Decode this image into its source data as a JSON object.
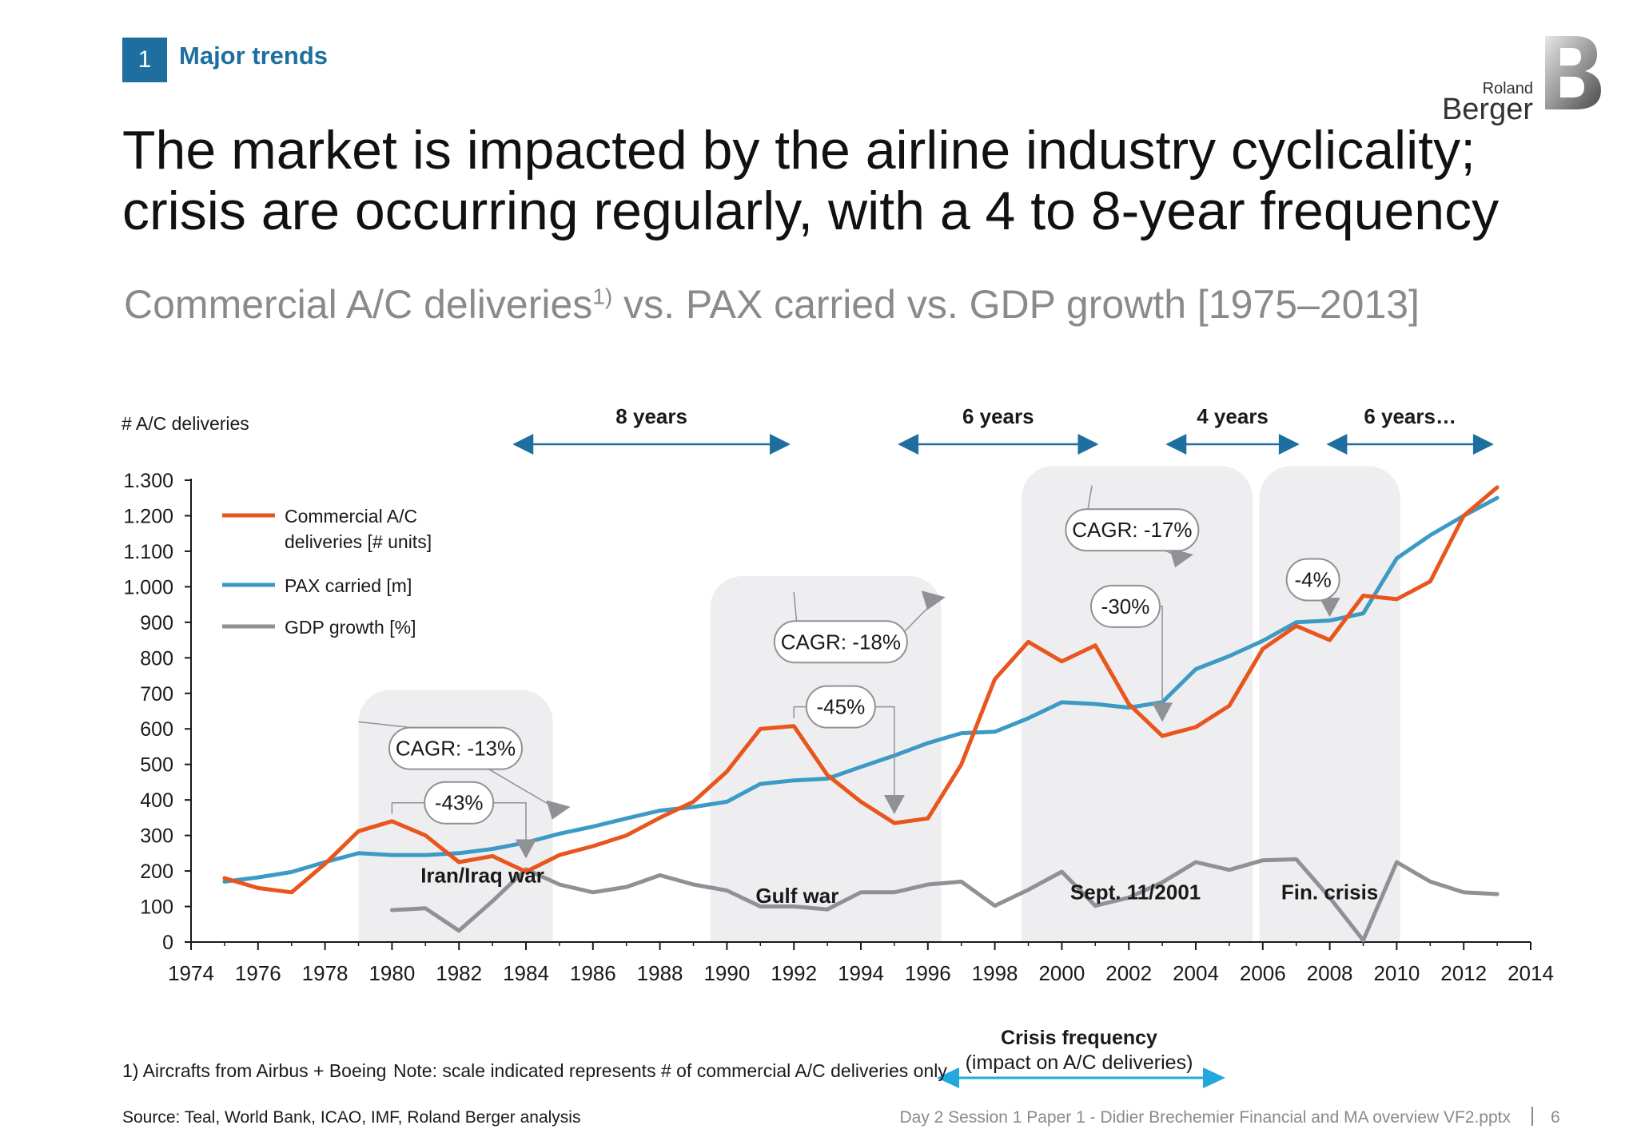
{
  "header": {
    "section_number": "1",
    "section_label": "Major trends",
    "logo_small": "Roland",
    "logo_big": "Berger"
  },
  "title": "The market is impacted by the airline industry cyclicality; crisis are occurring regularly, with a 4 to 8-year frequency",
  "subtitle": {
    "main": "Commercial A/C deliveries",
    "sup": "1)",
    "rest": " vs. PAX carried vs. GDP growth [1975–2013]"
  },
  "footer": {
    "footnote": "1) Aircrafts from Airbus + Boeing",
    "note": "Note: scale indicated represents # of commercial A/C deliveries only",
    "source": "Source: Teal, World Bank, ICAO, IMF, Roland Berger analysis",
    "document": "Day 2 Session 1 Paper 1 - Didier Brechemier Financial and MA overview VF2.pptx",
    "page": "6"
  },
  "crisis_frequency": {
    "title": "Crisis frequency",
    "subtitle": "(impact on A/C deliveries)"
  },
  "colors": {
    "brand_blue": "#1e6fa0",
    "deliveries": "#e8561e",
    "pax": "#3c9ac4",
    "gdp": "#8f9194",
    "crisis_band": "#eeeef0",
    "frequency_arrow": "#1e6fa0",
    "legend_arrow": "#22a7de"
  },
  "chart_data": {
    "type": "line",
    "ylabel": "# A/C deliveries",
    "xlim": [
      1974,
      2014
    ],
    "ylim": [
      0,
      1300
    ],
    "xticks": [
      1974,
      1976,
      1978,
      1980,
      1982,
      1984,
      1986,
      1988,
      1990,
      1992,
      1994,
      1996,
      1998,
      2000,
      2002,
      2004,
      2006,
      2008,
      2010,
      2012,
      2014
    ],
    "yticks": [
      0,
      100,
      200,
      300,
      400,
      500,
      600,
      700,
      800,
      900,
      1000,
      1100,
      1200,
      1300
    ],
    "ytick_labels": [
      "0",
      "100",
      "200",
      "300",
      "400",
      "500",
      "600",
      "700",
      "800",
      "900",
      "1.000",
      "1.100",
      "1.200",
      "1.300"
    ],
    "series": [
      {
        "name": "Commercial A/C deliveries [# units]",
        "color": "#e8561e",
        "x": [
          1975,
          1976,
          1977,
          1978,
          1979,
          1980,
          1981,
          1982,
          1983,
          1984,
          1985,
          1986,
          1987,
          1988,
          1989,
          1990,
          1991,
          1992,
          1993,
          1994,
          1995,
          1996,
          1997,
          1998,
          1999,
          2000,
          2001,
          2002,
          2003,
          2004,
          2005,
          2006,
          2007,
          2008,
          2009,
          2010,
          2011,
          2012,
          2013
        ],
        "values": [
          180,
          152,
          140,
          220,
          312,
          340,
          300,
          225,
          242,
          198,
          245,
          270,
          300,
          350,
          395,
          480,
          600,
          608,
          470,
          395,
          335,
          348,
          500,
          740,
          845,
          790,
          835,
          670,
          580,
          605,
          665,
          825,
          890,
          850,
          975,
          965,
          1015,
          1200,
          1280
        ]
      },
      {
        "name": "PAX carried [m]",
        "color": "#3c9ac4",
        "x": [
          1975,
          1976,
          1977,
          1978,
          1979,
          1980,
          1981,
          1982,
          1983,
          1984,
          1985,
          1986,
          1987,
          1988,
          1989,
          1990,
          1991,
          1992,
          1993,
          1994,
          1995,
          1996,
          1997,
          1998,
          1999,
          2000,
          2001,
          2002,
          2003,
          2004,
          2005,
          2006,
          2007,
          2008,
          2009,
          2010,
          2011,
          2012,
          2013
        ],
        "values": [
          170,
          182,
          197,
          225,
          250,
          245,
          245,
          250,
          262,
          280,
          305,
          325,
          348,
          370,
          380,
          395,
          445,
          455,
          460,
          493,
          525,
          560,
          588,
          592,
          630,
          675,
          670,
          660,
          675,
          768,
          805,
          848,
          900,
          905,
          925,
          1080,
          1145,
          1200,
          1250
        ]
      },
      {
        "name": "GDP growth [%]",
        "color": "#8f9194",
        "x": [
          1980,
          1981,
          1982,
          1983,
          1984,
          1985,
          1986,
          1987,
          1988,
          1989,
          1990,
          1991,
          1992,
          1993,
          1994,
          1995,
          1996,
          1997,
          1998,
          1999,
          2000,
          2001,
          2002,
          2003,
          2004,
          2005,
          2006,
          2007,
          2008,
          2009,
          2010,
          2011,
          2012,
          2013
        ],
        "values": [
          90,
          95,
          32,
          115,
          205,
          162,
          140,
          155,
          188,
          162,
          145,
          100,
          100,
          92,
          140,
          140,
          162,
          170,
          102,
          147,
          198,
          102,
          125,
          168,
          225,
          203,
          230,
          233,
          125,
          5,
          225,
          170,
          140,
          135
        ]
      }
    ],
    "crisis_bands": [
      {
        "label": "Iran/Iraq war",
        "start": 1979,
        "end": 1984.8,
        "top": 710
      },
      {
        "label": "Gulf war",
        "start": 1989.5,
        "end": 1996.4,
        "top": 1030
      },
      {
        "label": "Sept. 11/2001",
        "start": 1998.8,
        "end": 2005.7,
        "top": 1340
      },
      {
        "label": "Fin. crisis",
        "start": 2005.9,
        "end": 2010.1,
        "top": 1340
      }
    ],
    "annotations": [
      {
        "text": "CAGR: -13%",
        "x": 1981.9,
        "y": 545
      },
      {
        "text": "-43%",
        "x": 1982,
        "y": 392
      },
      {
        "text": "CAGR: -18%",
        "x": 1993.4,
        "y": 845
      },
      {
        "text": "-45%",
        "x": 1993.4,
        "y": 662
      },
      {
        "text": "CAGR: -17%",
        "x": 2002.1,
        "y": 1160
      },
      {
        "text": "-30%",
        "x": 2001.9,
        "y": 945
      },
      {
        "text": "-4%",
        "x": 2007.5,
        "y": 1020
      }
    ],
    "crisis_frequency": [
      {
        "label": "8 years",
        "start": 1983.6,
        "end": 1991.9
      },
      {
        "label": "6 years",
        "start": 1995.1,
        "end": 2001.1
      },
      {
        "label": "4 years",
        "start": 2003.1,
        "end": 2007.1
      },
      {
        "label": "6 years…",
        "start": 2007.9,
        "end": 2012.9
      }
    ],
    "grid": false,
    "legend_position": "top-left"
  }
}
